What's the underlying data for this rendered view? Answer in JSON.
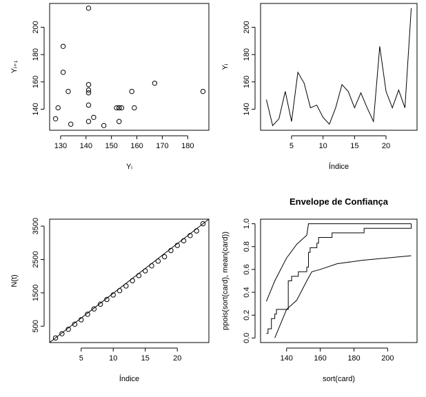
{
  "chart_data": [
    {
      "type": "scatter",
      "x_label": "Yᵢ",
      "y_label": "Yᵢ₊₁",
      "x": [
        147,
        128,
        133,
        153,
        131,
        167,
        159,
        141,
        143,
        134,
        129,
        141,
        158,
        153,
        141,
        152,
        141,
        131,
        186,
        153,
        141,
        154,
        141
      ],
      "y": [
        128,
        133,
        153,
        131,
        167,
        159,
        141,
        143,
        134,
        129,
        141,
        158,
        153,
        141,
        152,
        141,
        131,
        186,
        153,
        141,
        154,
        141,
        214
      ],
      "xlim": [
        125.68,
        188.32
      ],
      "ylim": [
        124.56,
        217.44
      ],
      "xticks": [
        130,
        140,
        150,
        160,
        170,
        180
      ],
      "yticks": [
        140,
        160,
        180,
        200
      ]
    },
    {
      "type": "line",
      "x_label": "Índice",
      "y_label": "Yᵢ",
      "x": [
        1,
        2,
        3,
        4,
        5,
        6,
        7,
        8,
        9,
        10,
        11,
        12,
        13,
        14,
        15,
        16,
        17,
        18,
        19,
        20,
        21,
        22,
        23,
        24
      ],
      "values": [
        147,
        128,
        133,
        153,
        131,
        167,
        159,
        141,
        143,
        134,
        129,
        141,
        158,
        153,
        141,
        152,
        141,
        131,
        186,
        153,
        141,
        154,
        141,
        214
      ],
      "xlim": [
        0.08,
        24.92
      ],
      "ylim": [
        124.56,
        217.44
      ],
      "xticks": [
        5,
        10,
        15,
        20
      ],
      "yticks": [
        140,
        160,
        180,
        200
      ]
    },
    {
      "type": "scatter",
      "x_label": "Índice",
      "y_label": "N(t)",
      "x": [
        1,
        2,
        3,
        4,
        5,
        6,
        7,
        8,
        9,
        10,
        11,
        12,
        13,
        14,
        15,
        16,
        17,
        18,
        19,
        20,
        21,
        22,
        23,
        24
      ],
      "y": [
        147,
        275,
        408,
        561,
        692,
        859,
        1018,
        1159,
        1302,
        1436,
        1565,
        1706,
        1864,
        2017,
        2158,
        2310,
        2451,
        2582,
        2768,
        2921,
        3062,
        3216,
        3357,
        3571
      ],
      "line": {
        "x": [
          0.08,
          24.92
        ],
        "y": [
          12,
          3708
        ]
      },
      "xlim": [
        0.08,
        24.92
      ],
      "ylim": [
        10,
        3708
      ],
      "xticks": [
        5,
        10,
        15,
        20
      ],
      "yticks": [
        500,
        1500,
        2500,
        3500
      ]
    },
    {
      "type": "line",
      "title": "Envelope de Confiança",
      "x_label": "sort(card)",
      "y_label": "ppois(sort(card), mean(card))",
      "series": [
        {
          "step": true,
          "x": [
            128,
            129,
            131,
            133,
            134,
            141,
            143,
            147,
            152,
            153,
            154,
            158,
            159,
            167,
            186,
            214
          ],
          "y": [
            0.04,
            0.08,
            0.17,
            0.21,
            0.25,
            0.5,
            0.54,
            0.58,
            0.62,
            0.75,
            0.79,
            0.83,
            0.88,
            0.92,
            0.96,
            1.0
          ]
        },
        {
          "step": false,
          "x": [
            128,
            133,
            140,
            146,
            152,
            153,
            214
          ],
          "y": [
            0.32,
            0.5,
            0.7,
            0.82,
            0.9,
            1.0,
            1.0
          ]
        },
        {
          "step": false,
          "x": [
            133,
            140,
            146,
            152,
            155,
            160,
            170,
            185,
            214
          ],
          "y": [
            0,
            0.25,
            0.33,
            0.5,
            0.58,
            0.6,
            0.65,
            0.68,
            0.72
          ]
        }
      ],
      "xlim": [
        124.56,
        217.44
      ],
      "ylim": [
        -0.04,
        1.04
      ],
      "xticks": [
        140,
        160,
        180,
        200
      ],
      "yticks": [
        {
          "value": 0,
          "label": "0.0"
        },
        {
          "value": 0.2,
          "label": "0.2"
        },
        {
          "value": 0.4,
          "label": "0.4"
        },
        {
          "value": 0.6,
          "label": "0.6"
        },
        {
          "value": 0.8,
          "label": "0.8"
        },
        {
          "value": 1,
          "label": "1.0"
        }
      ]
    }
  ]
}
